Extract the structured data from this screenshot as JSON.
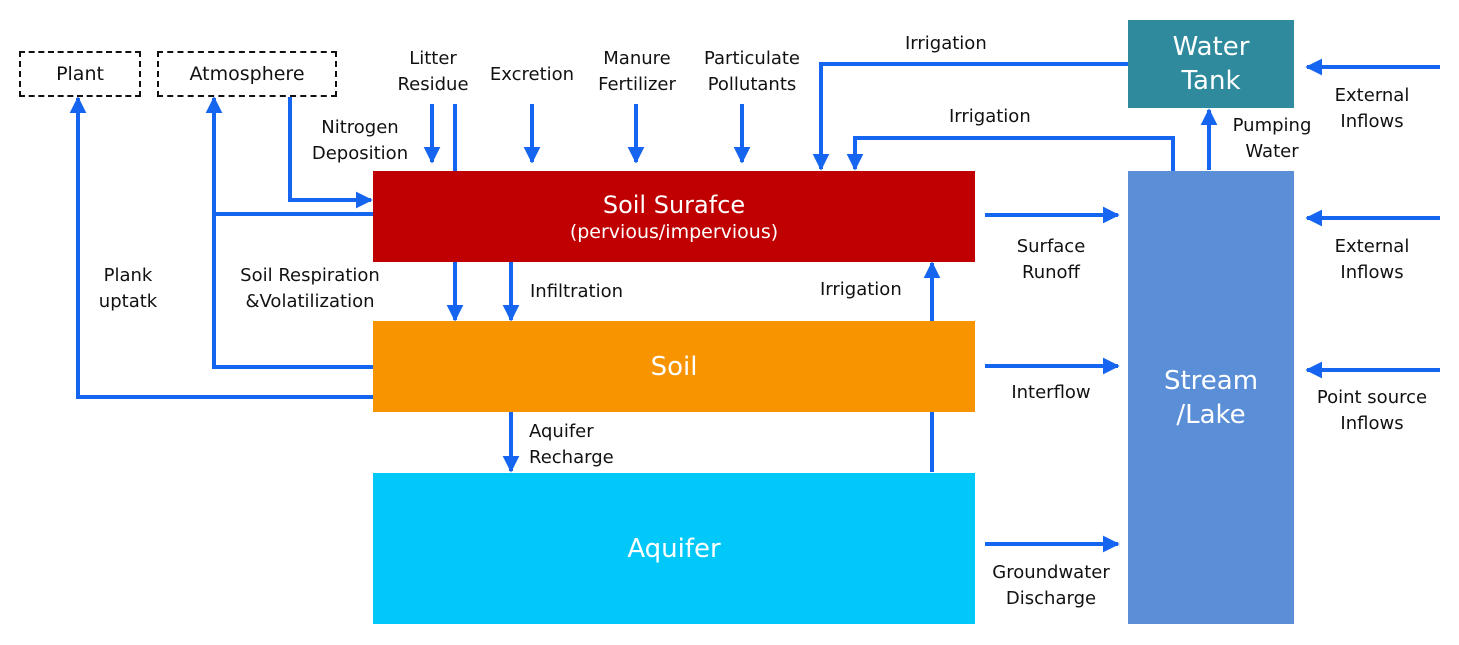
{
  "colors": {
    "arrow": "#1565f0",
    "soil_surface": "#c00000",
    "soil": "#f79400",
    "aquifer": "#00c8f8",
    "stream": "#5a8fd8",
    "water_tank": "#2e8a9c"
  },
  "nodes": {
    "plant": "Plant",
    "atmosphere": "Atmosphere",
    "soil_surface_title": "Soil Surafce",
    "soil_surface_subtitle": "(pervious/impervious)",
    "soil": "Soil",
    "aquifer": "Aquifer",
    "stream_lake": "Stream\n/Lake",
    "water_tank": "Water\nTank"
  },
  "labels": {
    "litter_residue": "Litter\nResidue",
    "excretion": "Excretion",
    "manure_fertilizer": "Manure\nFertilizer",
    "particulate_pollutants": "Particulate\nPollutants",
    "nitrogen_deposition": "Nitrogen\nDeposition",
    "irrigation_top": "Irrigation",
    "irrigation_mid": "Irrigation",
    "irrigation_low": "Irrigation",
    "plank_uptake": "Plank\nuptatk",
    "soil_respiration": "Soil Respiration\n&Volatilization",
    "infiltration": "Infiltration",
    "aquifer_recharge": "Aquifer\nRecharge",
    "surface_runoff": "Surface\nRunoff",
    "interflow": "Interflow",
    "groundwater_discharge": "Groundwater\nDischarge",
    "pumping_water": "Pumping\nWater",
    "external_inflows_1": "External\nInflows",
    "external_inflows_2": "External\nInflows",
    "point_source_inflows": "Point source\nInflows"
  }
}
